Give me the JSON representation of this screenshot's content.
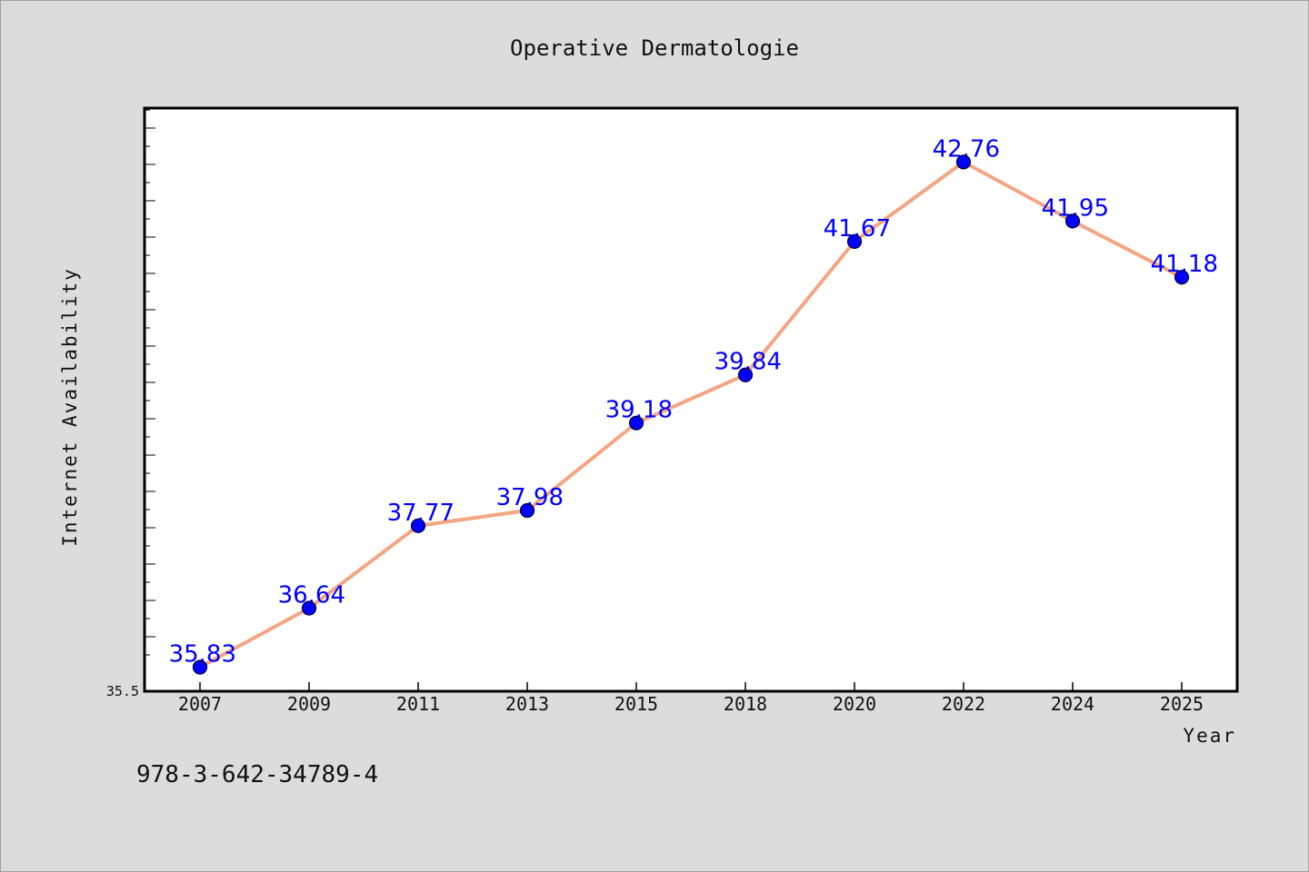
{
  "chart_data": {
    "type": "line",
    "title": "Operative Dermatologie",
    "xlabel": "Year",
    "ylabel": "Internet Availability",
    "categories": [
      "2007",
      "2009",
      "2011",
      "2013",
      "2015",
      "2018",
      "2020",
      "2022",
      "2024",
      "2025"
    ],
    "series": [
      {
        "values": [
          35.83,
          36.64,
          37.77,
          37.98,
          39.18,
          39.84,
          41.67,
          42.76,
          41.95,
          41.18
        ],
        "labels": [
          "35.83",
          "36.64",
          "37.77",
          "37.98",
          "39.18",
          "39.84",
          "41.67",
          "42.76",
          "41.95",
          "41.18"
        ]
      }
    ],
    "ylim": [
      35.5,
      43.5
    ],
    "yticklabels": [
      "35.5"
    ],
    "grid": false,
    "colors": {
      "line": "#f4a582",
      "marker": "#0000ff",
      "data_label": "#0000ff",
      "plot_bg": "#ffffff",
      "page_bg": "#dcdcdc"
    }
  },
  "footnote": "978-3-642-34789-4"
}
